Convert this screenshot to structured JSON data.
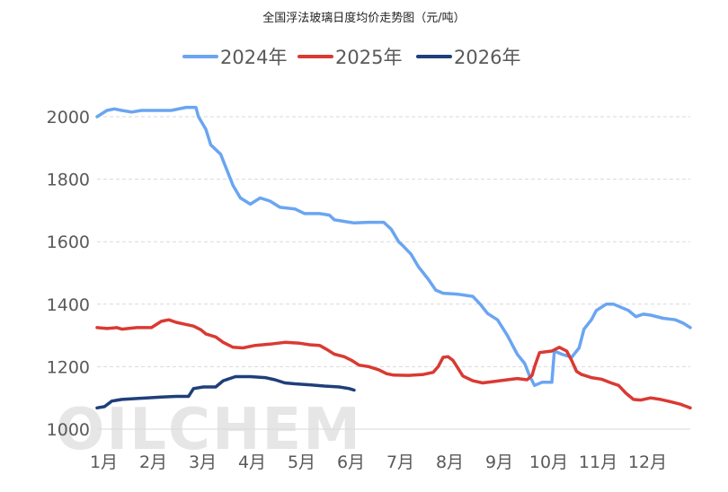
{
  "chart_data": {
    "type": "line",
    "title": "全国浮法玻璃日度均价走势图（元/吨）",
    "xlabel": "",
    "ylabel": "",
    "ylim": [
      1000,
      2000
    ],
    "yticks": [
      1000,
      1200,
      1400,
      1600,
      1800,
      2000
    ],
    "xlim": [
      1,
      13
    ],
    "xticks": [
      {
        "m": 1,
        "label": "1月"
      },
      {
        "m": 2,
        "label": "2月"
      },
      {
        "m": 3,
        "label": "3月"
      },
      {
        "m": 4,
        "label": "4月"
      },
      {
        "m": 5,
        "label": "5月"
      },
      {
        "m": 6,
        "label": "6月"
      },
      {
        "m": 7,
        "label": "7月"
      },
      {
        "m": 8,
        "label": "8月"
      },
      {
        "m": 9,
        "label": "9月"
      },
      {
        "m": 10,
        "label": "10月"
      },
      {
        "m": 11,
        "label": "11月"
      },
      {
        "m": 12,
        "label": "12月"
      }
    ],
    "grid": true,
    "legend_position": "top",
    "watermark": "OILCHEM",
    "series": [
      {
        "name": "2024年",
        "color": "#6aa5f2",
        "points": [
          [
            1.0,
            2000
          ],
          [
            1.1,
            2010
          ],
          [
            1.2,
            2020
          ],
          [
            1.35,
            2025
          ],
          [
            1.5,
            2020
          ],
          [
            1.7,
            2015
          ],
          [
            1.9,
            2020
          ],
          [
            2.2,
            2020
          ],
          [
            2.5,
            2020
          ],
          [
            2.8,
            2030
          ],
          [
            3.0,
            2030
          ],
          [
            3.05,
            2000
          ],
          [
            3.2,
            1960
          ],
          [
            3.3,
            1910
          ],
          [
            3.5,
            1880
          ],
          [
            3.6,
            1840
          ],
          [
            3.75,
            1780
          ],
          [
            3.9,
            1740
          ],
          [
            4.1,
            1720
          ],
          [
            4.3,
            1740
          ],
          [
            4.5,
            1730
          ],
          [
            4.7,
            1710
          ],
          [
            5.0,
            1705
          ],
          [
            5.2,
            1690
          ],
          [
            5.5,
            1690
          ],
          [
            5.7,
            1685
          ],
          [
            5.8,
            1670
          ],
          [
            6.0,
            1665
          ],
          [
            6.2,
            1660
          ],
          [
            6.5,
            1662
          ],
          [
            6.8,
            1662
          ],
          [
            6.95,
            1640
          ],
          [
            7.1,
            1600
          ],
          [
            7.2,
            1585
          ],
          [
            7.35,
            1560
          ],
          [
            7.5,
            1520
          ],
          [
            7.7,
            1480
          ],
          [
            7.85,
            1445
          ],
          [
            8.0,
            1435
          ],
          [
            8.3,
            1432
          ],
          [
            8.6,
            1425
          ],
          [
            8.75,
            1400
          ],
          [
            8.9,
            1370
          ],
          [
            9.1,
            1350
          ],
          [
            9.3,
            1300
          ],
          [
            9.5,
            1240
          ],
          [
            9.65,
            1210
          ],
          [
            9.75,
            1170
          ],
          [
            9.85,
            1140
          ],
          [
            10.0,
            1150
          ],
          [
            10.2,
            1150
          ],
          [
            10.25,
            1250
          ],
          [
            10.4,
            1240
          ],
          [
            10.6,
            1230
          ],
          [
            10.75,
            1260
          ],
          [
            10.85,
            1320
          ],
          [
            11.0,
            1350
          ],
          [
            11.1,
            1380
          ],
          [
            11.3,
            1400
          ],
          [
            11.45,
            1400
          ],
          [
            11.6,
            1390
          ],
          [
            11.75,
            1380
          ],
          [
            11.9,
            1360
          ],
          [
            12.05,
            1368
          ],
          [
            12.2,
            1365
          ],
          [
            12.45,
            1355
          ],
          [
            12.7,
            1350
          ],
          [
            12.85,
            1340
          ],
          [
            13.0,
            1325
          ]
        ]
      },
      {
        "name": "2025年",
        "color": "#d93a32",
        "points": [
          [
            1.0,
            1325
          ],
          [
            1.2,
            1322
          ],
          [
            1.4,
            1325
          ],
          [
            1.5,
            1320
          ],
          [
            1.8,
            1325
          ],
          [
            2.1,
            1325
          ],
          [
            2.3,
            1345
          ],
          [
            2.45,
            1350
          ],
          [
            2.6,
            1342
          ],
          [
            2.8,
            1335
          ],
          [
            2.95,
            1330
          ],
          [
            3.1,
            1318
          ],
          [
            3.2,
            1305
          ],
          [
            3.4,
            1295
          ],
          [
            3.55,
            1278
          ],
          [
            3.75,
            1262
          ],
          [
            3.95,
            1260
          ],
          [
            4.2,
            1268
          ],
          [
            4.5,
            1272
          ],
          [
            4.8,
            1278
          ],
          [
            5.1,
            1275
          ],
          [
            5.3,
            1270
          ],
          [
            5.5,
            1268
          ],
          [
            5.65,
            1255
          ],
          [
            5.8,
            1240
          ],
          [
            6.0,
            1232
          ],
          [
            6.15,
            1220
          ],
          [
            6.3,
            1205
          ],
          [
            6.5,
            1200
          ],
          [
            6.7,
            1190
          ],
          [
            6.85,
            1178
          ],
          [
            7.0,
            1173
          ],
          [
            7.3,
            1172
          ],
          [
            7.6,
            1175
          ],
          [
            7.8,
            1182
          ],
          [
            7.9,
            1200
          ],
          [
            8.0,
            1230
          ],
          [
            8.1,
            1232
          ],
          [
            8.2,
            1220
          ],
          [
            8.3,
            1195
          ],
          [
            8.4,
            1170
          ],
          [
            8.6,
            1155
          ],
          [
            8.8,
            1148
          ],
          [
            9.0,
            1152
          ],
          [
            9.3,
            1158
          ],
          [
            9.5,
            1162
          ],
          [
            9.7,
            1158
          ],
          [
            9.8,
            1172
          ],
          [
            9.85,
            1200
          ],
          [
            9.95,
            1245
          ],
          [
            10.2,
            1250
          ],
          [
            10.35,
            1262
          ],
          [
            10.5,
            1250
          ],
          [
            10.6,
            1220
          ],
          [
            10.7,
            1185
          ],
          [
            10.8,
            1175
          ],
          [
            11.0,
            1165
          ],
          [
            11.2,
            1160
          ],
          [
            11.4,
            1148
          ],
          [
            11.55,
            1140
          ],
          [
            11.7,
            1115
          ],
          [
            11.85,
            1095
          ],
          [
            12.0,
            1093
          ],
          [
            12.2,
            1100
          ],
          [
            12.4,
            1095
          ],
          [
            12.6,
            1088
          ],
          [
            12.8,
            1080
          ],
          [
            13.0,
            1068
          ]
        ]
      },
      {
        "name": "2026年",
        "color": "#1f3f7a",
        "points": [
          [
            1.0,
            1068
          ],
          [
            1.15,
            1072
          ],
          [
            1.3,
            1090
          ],
          [
            1.5,
            1095
          ],
          [
            1.8,
            1098
          ],
          [
            2.0,
            1100
          ],
          [
            2.3,
            1103
          ],
          [
            2.6,
            1105
          ],
          [
            2.85,
            1105
          ],
          [
            2.95,
            1130
          ],
          [
            3.15,
            1135
          ],
          [
            3.4,
            1135
          ],
          [
            3.55,
            1155
          ],
          [
            3.8,
            1168
          ],
          [
            4.1,
            1168
          ],
          [
            4.4,
            1165
          ],
          [
            4.6,
            1158
          ],
          [
            4.8,
            1148
          ],
          [
            5.0,
            1145
          ],
          [
            5.3,
            1142
          ],
          [
            5.6,
            1138
          ],
          [
            5.9,
            1135
          ],
          [
            6.1,
            1130
          ],
          [
            6.2,
            1125
          ]
        ]
      }
    ]
  }
}
